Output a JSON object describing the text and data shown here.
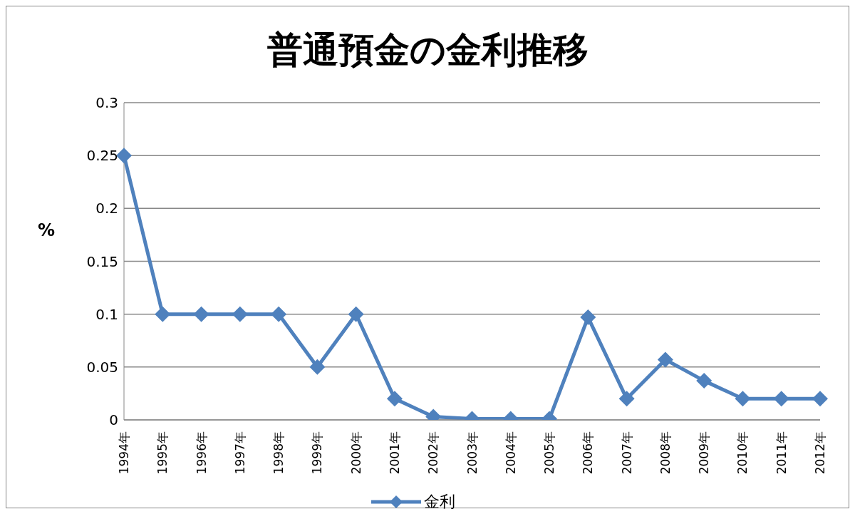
{
  "chart_data": {
    "type": "line",
    "title": "普通預金の金利推移",
    "ylabel": "%",
    "categories": [
      "1994年",
      "1995年",
      "1996年",
      "1997年",
      "1998年",
      "1999年",
      "2000年",
      "2001年",
      "2002年",
      "2003年",
      "2004年",
      "2005年",
      "2006年",
      "2007年",
      "2008年",
      "2009年",
      "2010年",
      "2011年",
      "2012年"
    ],
    "series": [
      {
        "name": "金利",
        "color": "#4f81bd",
        "values": [
          0.25,
          0.1,
          0.1,
          0.1,
          0.1,
          0.05,
          0.1,
          0.02,
          0.003,
          0.001,
          0.001,
          0.001,
          0.097,
          0.02,
          0.057,
          0.037,
          0.02,
          0.02,
          0.02
        ]
      }
    ],
    "ylim": [
      0,
      0.3
    ],
    "yticks": [
      0,
      0.05,
      0.1,
      0.15,
      0.2,
      0.25,
      0.3
    ],
    "grid": "y",
    "legend": "bottom",
    "marker": "diamond",
    "line_style": "solid"
  }
}
